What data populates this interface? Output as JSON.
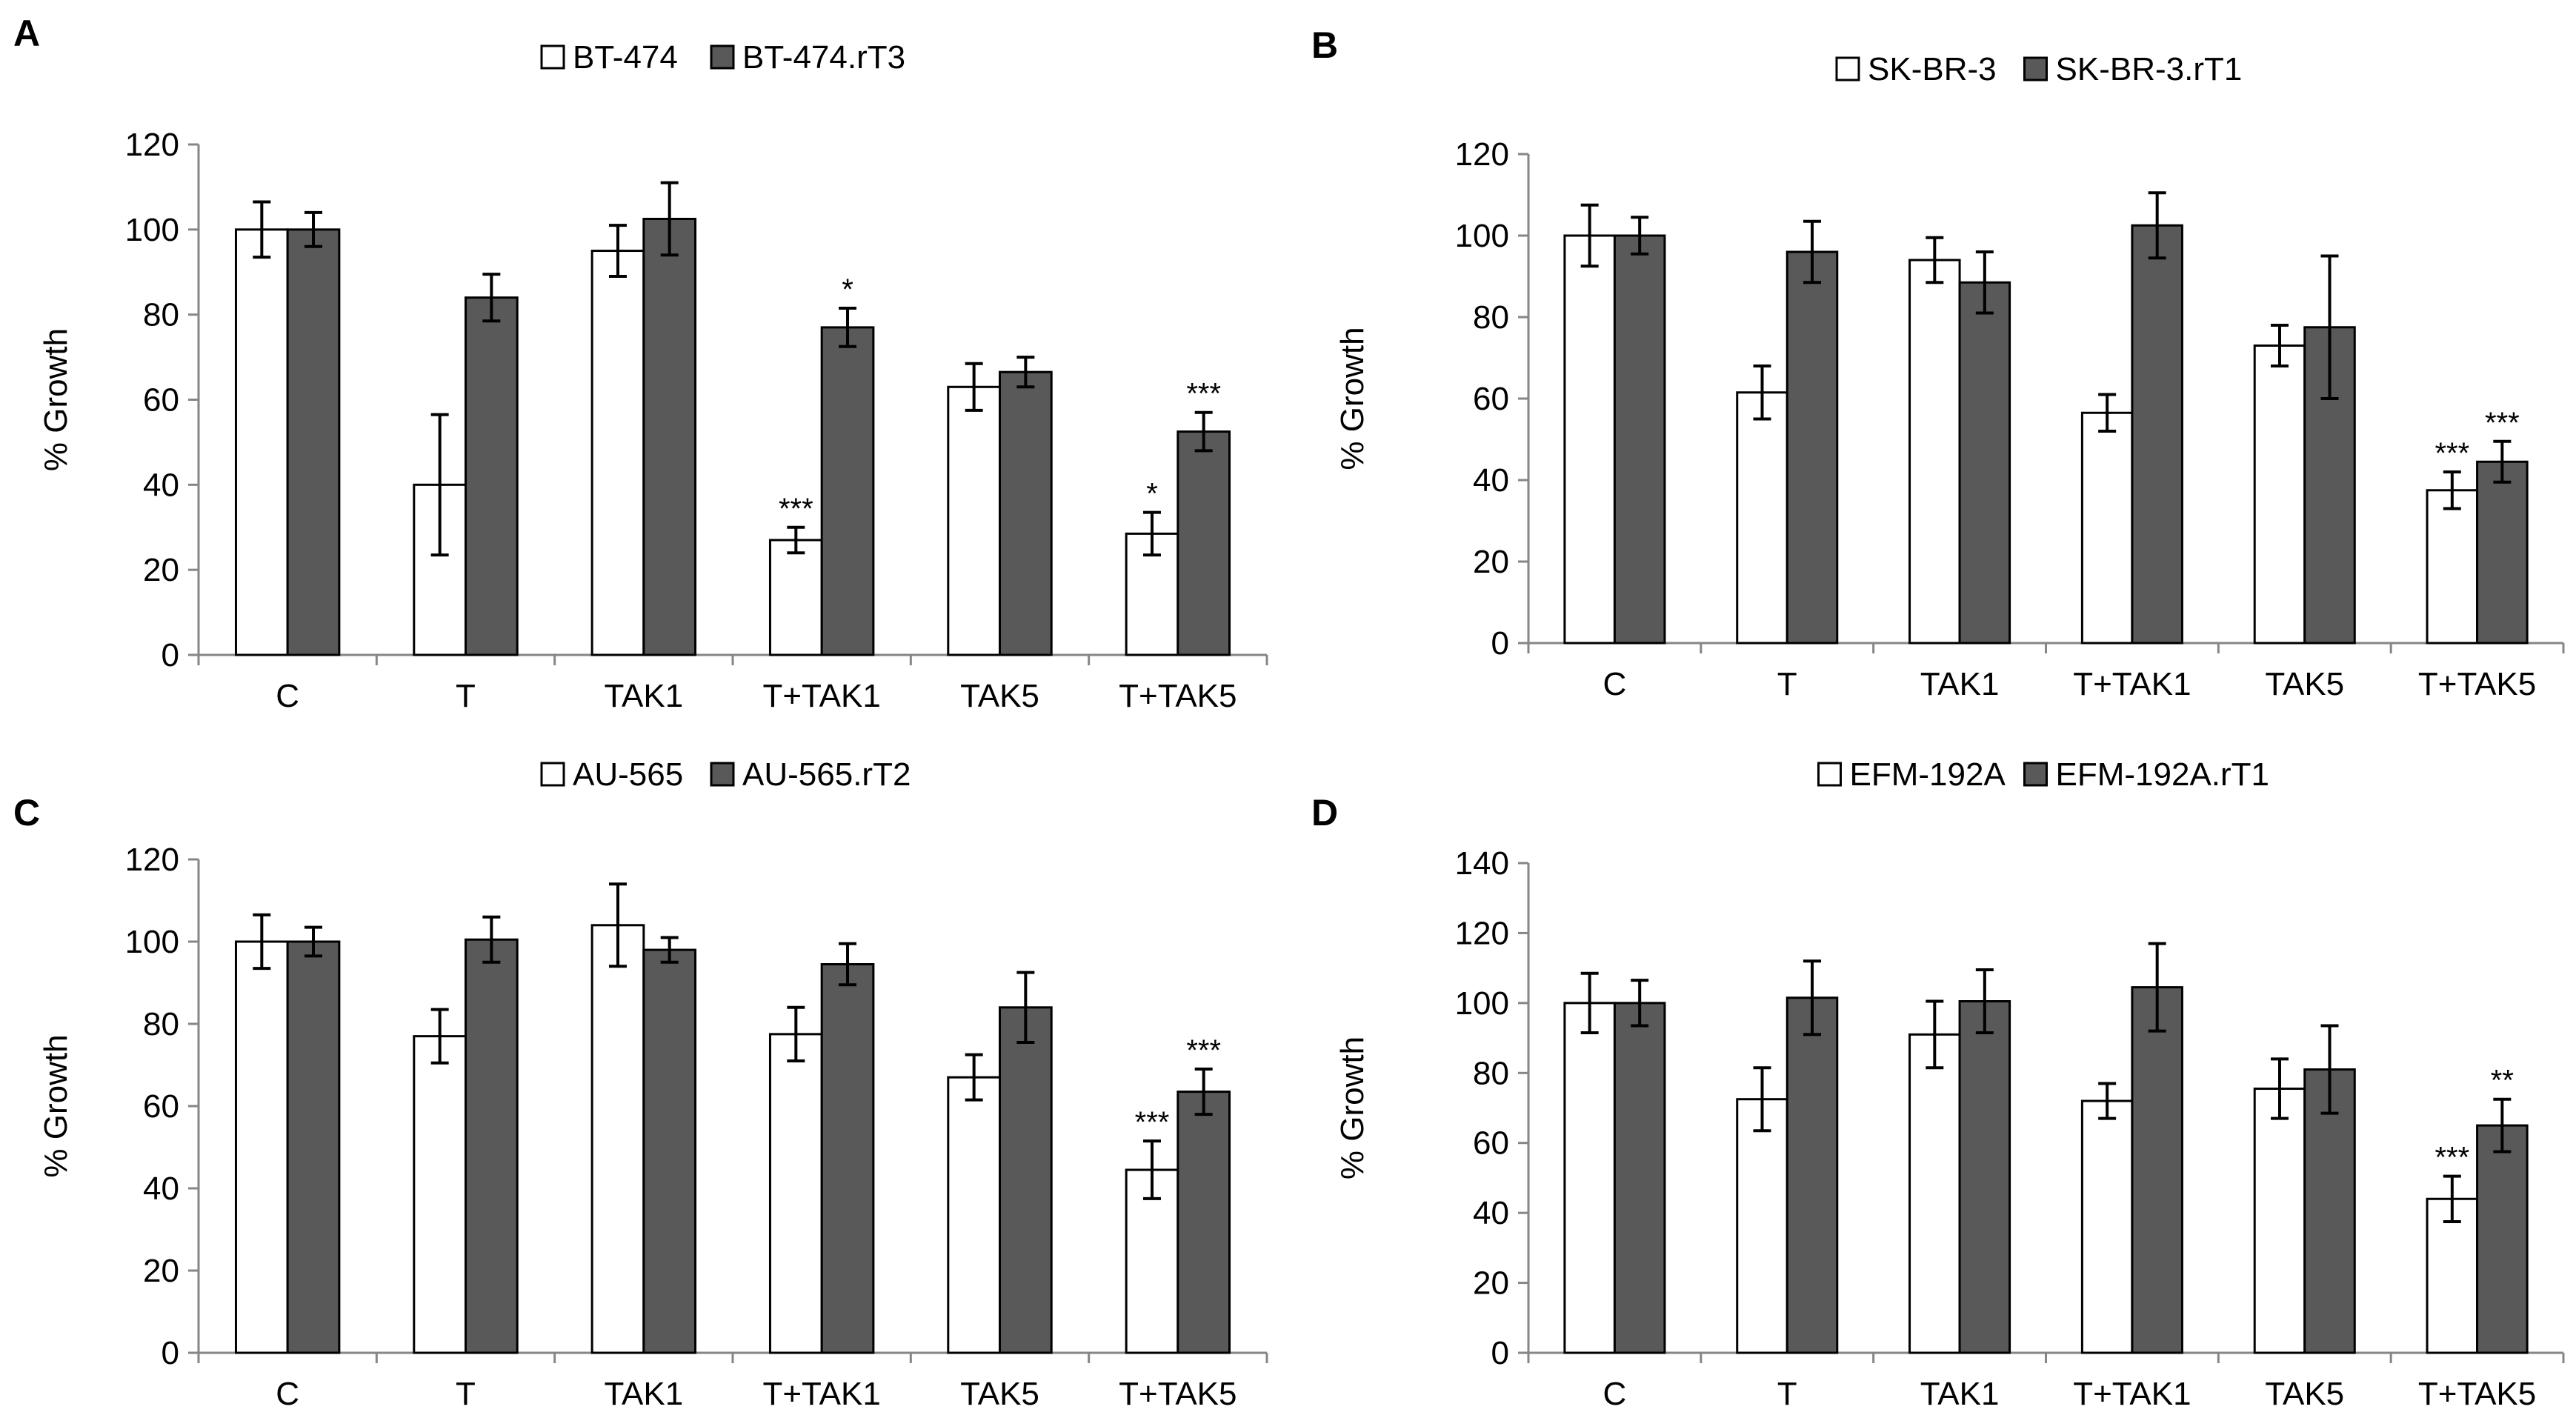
{
  "colors": {
    "series1": "#ffffff",
    "series2": "#595959",
    "stroke": "#000000",
    "axis": "#868686"
  },
  "chart_data": [
    {
      "panel": "A",
      "type": "bar",
      "categories": [
        "C",
        "T",
        "TAK1",
        "T+TAK1",
        "TAK5",
        "T+TAK5"
      ],
      "ylabel": "% Growth",
      "ylim": [
        0,
        120
      ],
      "yticks": [
        0,
        20,
        40,
        60,
        80,
        100,
        120
      ],
      "legend_position": "top-center",
      "series": [
        {
          "name": "BT-474",
          "values": [
            100,
            40,
            95,
            27,
            63,
            28.5
          ],
          "errors": [
            6.5,
            16.5,
            6,
            3,
            5.5,
            5
          ],
          "significance": [
            "",
            "",
            "",
            "***",
            "",
            "*"
          ]
        },
        {
          "name": "BT-474.rT3",
          "values": [
            100,
            84,
            102.5,
            77,
            66.5,
            52.5
          ],
          "errors": [
            4,
            5.5,
            8.5,
            4.5,
            3.5,
            4.5
          ],
          "significance": [
            "",
            "",
            "",
            "*",
            "",
            "***"
          ]
        }
      ]
    },
    {
      "panel": "B",
      "type": "bar",
      "categories": [
        "C",
        "T",
        "TAK1",
        "T+TAK1",
        "TAK5",
        "T+TAK5"
      ],
      "ylabel": "% Growth",
      "ylim": [
        0,
        120
      ],
      "yticks": [
        0,
        20,
        40,
        60,
        80,
        100,
        120
      ],
      "legend_position": "top-center",
      "series": [
        {
          "name": "SK-BR-3",
          "values": [
            100,
            61.5,
            94,
            56.5,
            73,
            37.5
          ],
          "errors": [
            7.5,
            6.5,
            5.5,
            4.5,
            5,
            4.5
          ],
          "significance": [
            "",
            "",
            "",
            "",
            "",
            "***"
          ]
        },
        {
          "name": "SK-BR-3.rT1",
          "values": [
            100,
            96,
            88.5,
            102.5,
            77.5,
            44.5
          ],
          "errors": [
            4.5,
            7.5,
            7.5,
            8,
            17.5,
            5
          ],
          "significance": [
            "",
            "",
            "",
            "",
            "",
            "***"
          ]
        }
      ]
    },
    {
      "panel": "C",
      "type": "bar",
      "categories": [
        "C",
        "T",
        "TAK1",
        "T+TAK1",
        "TAK5",
        "T+TAK5"
      ],
      "ylabel": "% Growth",
      "ylim": [
        0,
        120
      ],
      "yticks": [
        0,
        20,
        40,
        60,
        80,
        100,
        120
      ],
      "legend_position": "top-center",
      "series": [
        {
          "name": "AU-565",
          "values": [
            100,
            77,
            104,
            77.5,
            67,
            44.5
          ],
          "errors": [
            6.5,
            6.5,
            10,
            6.5,
            5.5,
            7
          ],
          "significance": [
            "",
            "",
            "",
            "",
            "",
            "***"
          ]
        },
        {
          "name": "AU-565.rT2",
          "values": [
            100,
            100.5,
            98,
            94.5,
            84,
            63.5
          ],
          "errors": [
            3.5,
            5.5,
            3,
            5,
            8.5,
            5.5
          ],
          "significance": [
            "",
            "",
            "",
            "",
            "",
            "***"
          ]
        }
      ]
    },
    {
      "panel": "D",
      "type": "bar",
      "categories": [
        "C",
        "T",
        "TAK1",
        "T+TAK1",
        "TAK5",
        "T+TAK5"
      ],
      "ylabel": "% Growth",
      "ylim": [
        0,
        140
      ],
      "yticks": [
        0,
        20,
        40,
        60,
        80,
        100,
        120,
        140
      ],
      "legend_position": "top-center",
      "series": [
        {
          "name": "EFM-192A",
          "values": [
            100,
            72.5,
            91,
            72,
            75.5,
            44
          ],
          "errors": [
            8.5,
            9,
            9.5,
            5,
            8.5,
            6.5
          ],
          "significance": [
            "",
            "",
            "",
            "",
            "",
            "***"
          ]
        },
        {
          "name": "EFM-192A.rT1",
          "values": [
            100,
            101.5,
            100.5,
            104.5,
            81,
            65
          ],
          "errors": [
            6.5,
            10.5,
            9,
            12.5,
            12.5,
            7.5
          ],
          "significance": [
            "",
            "",
            "",
            "",
            "",
            "**"
          ]
        }
      ]
    }
  ]
}
